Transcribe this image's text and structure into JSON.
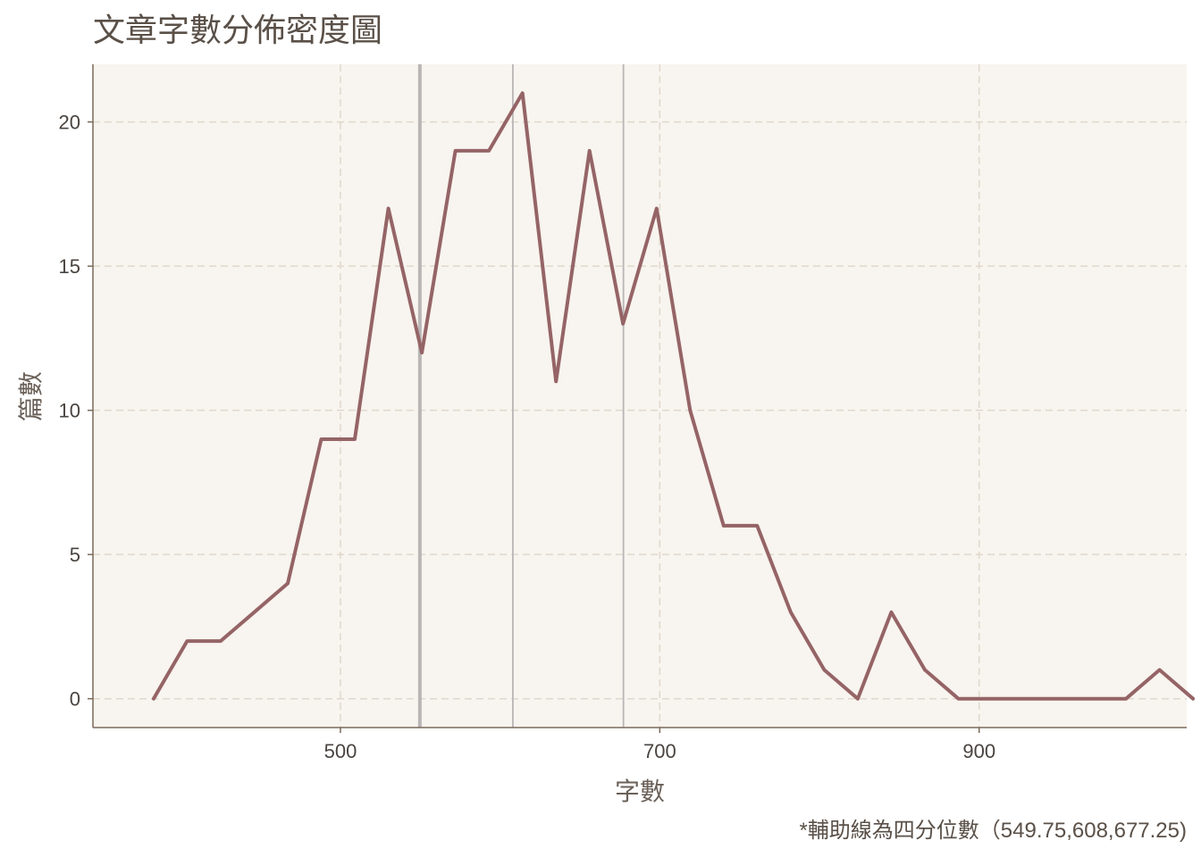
{
  "chart_data": {
    "type": "line",
    "title": "文章字數分佈密度圖",
    "xlabel": "字數",
    "ylabel": "篇數",
    "caption": "*輔助線為四分位數（549.75,608,677.25)",
    "xlim": [
      345,
      1030
    ],
    "ylim": [
      -1,
      22
    ],
    "x_ticks": [
      500,
      700,
      900
    ],
    "y_ticks": [
      0,
      5,
      10,
      15,
      20
    ],
    "grid": true,
    "quartiles": [
      549.75,
      608,
      677.25
    ],
    "series": [
      {
        "x": [
          383,
          404,
          425,
          446,
          467,
          488,
          509,
          530,
          551,
          572,
          593,
          614,
          635,
          656,
          677,
          698,
          719,
          740,
          761,
          782,
          803,
          824,
          845,
          866,
          887,
          908,
          929,
          950,
          971,
          992,
          1013,
          1034
        ],
        "values": [
          0,
          2,
          2,
          3,
          4,
          9,
          9,
          17,
          12,
          19,
          19,
          21,
          11,
          19,
          13,
          17,
          10,
          6,
          6,
          3,
          1,
          0,
          3,
          1,
          0,
          0,
          0,
          0,
          0,
          0,
          1,
          0
        ]
      }
    ]
  },
  "colors": {
    "panel_bg": "#f8f4ef",
    "line": "#956466",
    "grid": "#e0d8cc",
    "quartile": "#b9b6b6",
    "axis": "#7a6a5a"
  }
}
